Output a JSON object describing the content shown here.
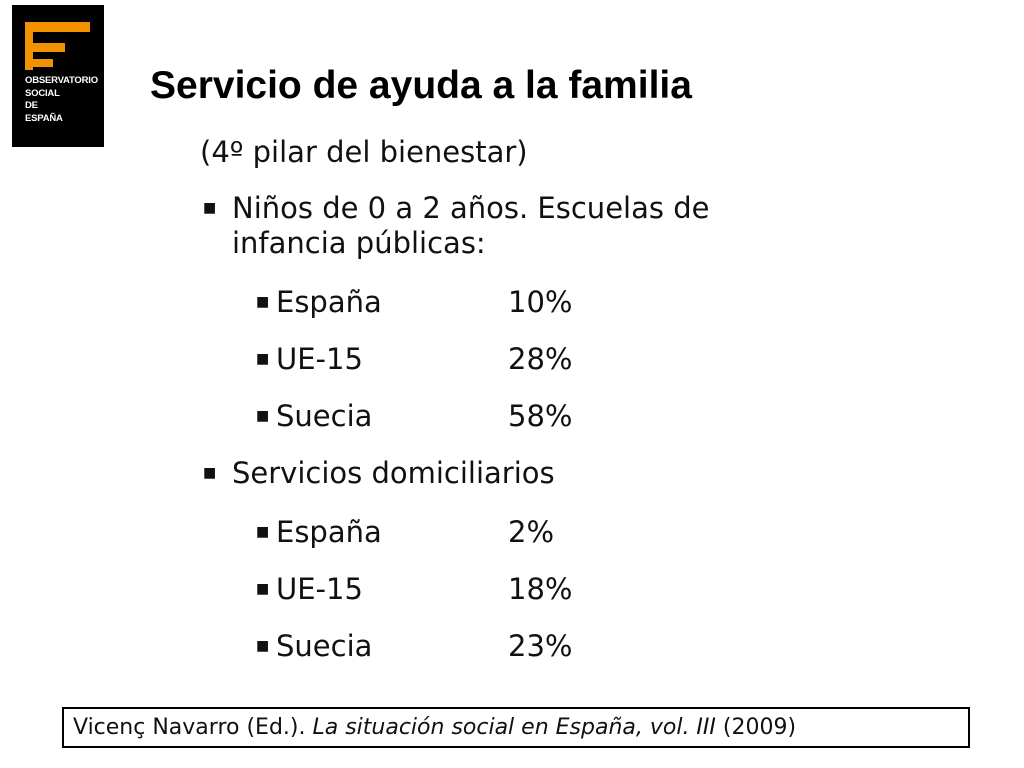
{
  "logo": {
    "lines": [
      "OBSERVATORIO",
      "SOCIAL",
      "DE",
      "ESPAÑA"
    ]
  },
  "title": "Servicio de ayuda a la familia",
  "subtitle": "(4º pilar del bienestar)",
  "sections": [
    {
      "heading": [
        "Niños de 0 a 2 años. Escuelas de",
        "infancia públicas:"
      ],
      "items": [
        {
          "label": "España",
          "value": "10%"
        },
        {
          "label": "UE-15",
          "value": "28%"
        },
        {
          "label": "Suecia",
          "value": "58%"
        }
      ]
    },
    {
      "heading": [
        "Servicios domiciliarios"
      ],
      "items": [
        {
          "label": "España",
          "value": "2%"
        },
        {
          "label": "UE-15",
          "value": "18%"
        },
        {
          "label": "Suecia",
          "value": "23%"
        }
      ]
    }
  ],
  "citation": {
    "author": "Vicenç Navarro (Ed.).",
    "work": "La situación social en España, vol. III",
    "year": "(2009)"
  }
}
